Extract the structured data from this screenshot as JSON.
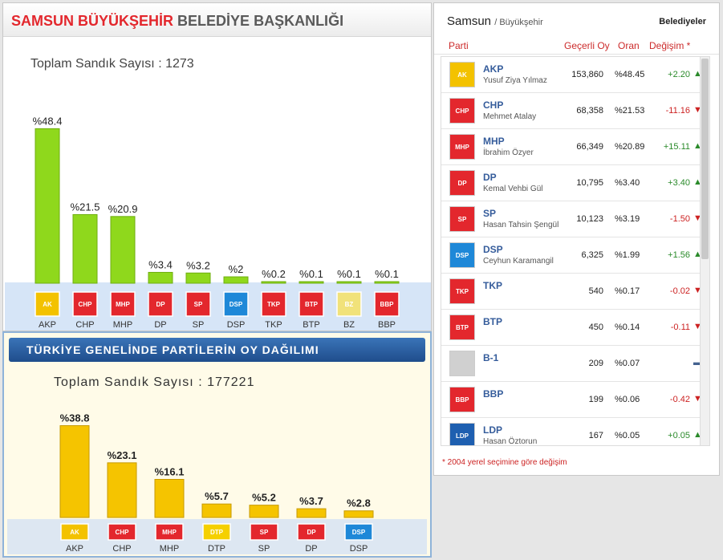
{
  "top_panel": {
    "title_red": "SAMSUN BÜYÜKŞEHİR",
    "title_gray": "BELEDİYE BAŞKANLIĞI",
    "total_label": "Toplam Sandık Sayısı : 1273"
  },
  "bottom_panel": {
    "banner": "TÜRKİYE GENELİNDE PARTİLERİN OY DAĞILIMI",
    "total_label": "Toplam Sandık Sayısı : 177221"
  },
  "chart_data": [
    {
      "type": "bar",
      "title": "SAMSUN BÜYÜKŞEHİR BELEDİYE BAŞKANLIĞI",
      "categories": [
        "AKP",
        "CHP",
        "MHP",
        "DP",
        "SP",
        "DSP",
        "TKP",
        "BTP",
        "BZ",
        "BBP"
      ],
      "values": [
        48.4,
        21.5,
        20.9,
        3.4,
        3.2,
        2,
        0.2,
        0.1,
        0.1,
        0.1
      ],
      "labels": [
        "%48.4",
        "%21.5",
        "%20.9",
        "%3.4",
        "%3.2",
        "%2",
        "%0.2",
        "%0.1",
        "%0.1",
        "%0.1"
      ],
      "ylim": [
        0,
        50
      ],
      "color": "#8fd81c"
    },
    {
      "type": "bar",
      "title": "TÜRKİYE GENELİNDE PARTİLERİN OY DAĞILIMI",
      "categories": [
        "AKP",
        "CHP",
        "MHP",
        "DTP",
        "SP",
        "DP",
        "DSP"
      ],
      "values": [
        38.8,
        23.1,
        16.1,
        5.7,
        5.2,
        3.7,
        2.8
      ],
      "labels": [
        "%38.8",
        "%23.1",
        "%16.1",
        "%5.7",
        "%5.2",
        "%3.7",
        "%2.8"
      ],
      "ylim": [
        0,
        40
      ],
      "color": "#f5c400"
    }
  ],
  "top_logos": [
    {
      "party": "AKP",
      "color": "#f3c200",
      "text": "AK"
    },
    {
      "party": "CHP",
      "color": "#e3272d",
      "text": "CHP"
    },
    {
      "party": "MHP",
      "color": "#e3272d",
      "text": "MHP"
    },
    {
      "party": "DP",
      "color": "#e3272d",
      "text": "DP"
    },
    {
      "party": "SP",
      "color": "#e3272d",
      "text": "SP"
    },
    {
      "party": "DSP",
      "color": "#1e88d8",
      "text": "DSP"
    },
    {
      "party": "TKP",
      "color": "#e3272d",
      "text": "TKP"
    },
    {
      "party": "BTP",
      "color": "#e3272d",
      "text": "BTP"
    },
    {
      "party": "BZ",
      "color": "#f1e27a",
      "text": "BZ"
    },
    {
      "party": "BBP",
      "color": "#e3272d",
      "text": "BBP"
    }
  ],
  "bottom_logos": [
    {
      "party": "AKP",
      "color": "#f3c200",
      "text": "AK"
    },
    {
      "party": "CHP",
      "color": "#e3272d",
      "text": "CHP"
    },
    {
      "party": "MHP",
      "color": "#e3272d",
      "text": "MHP"
    },
    {
      "party": "DTP",
      "color": "#f5d000",
      "text": "DTP"
    },
    {
      "party": "SP",
      "color": "#e3272d",
      "text": "SP"
    },
    {
      "party": "DP",
      "color": "#e3272d",
      "text": "DP"
    },
    {
      "party": "DSP",
      "color": "#1e88d8",
      "text": "DSP"
    }
  ],
  "right_panel": {
    "city": "Samsun",
    "subtitle": "/ Büyükşehir",
    "right_label": "Belediyeler",
    "col_party": "Parti",
    "col_votes": "Geçerli Oy",
    "col_ratio": "Oran",
    "col_change": "Değişim *",
    "footnote": "* 2004 yerel seçimine göre değişim",
    "rows": [
      {
        "party": "AKP",
        "candidate": "Yusuf Ziya Yılmaz",
        "votes": "153,860",
        "ratio": "%48.45",
        "change": "+2.20",
        "arrow": "▲",
        "dir": "pos",
        "logo_color": "#f3c200",
        "logo_text": "AK"
      },
      {
        "party": "CHP",
        "candidate": "Mehmet Atalay",
        "votes": "68,358",
        "ratio": "%21.53",
        "change": "-11.16",
        "arrow": "▼",
        "dir": "neg",
        "logo_color": "#e3272d",
        "logo_text": "CHP"
      },
      {
        "party": "MHP",
        "candidate": "İbrahim Özyer",
        "votes": "66,349",
        "ratio": "%20.89",
        "change": "+15.11",
        "arrow": "▲",
        "dir": "pos",
        "logo_color": "#e3272d",
        "logo_text": "MHP"
      },
      {
        "party": "DP",
        "candidate": "Kemal Vehbi Gül",
        "votes": "10,795",
        "ratio": "%3.40",
        "change": "+3.40",
        "arrow": "▲",
        "dir": "pos",
        "logo_color": "#e3272d",
        "logo_text": "DP"
      },
      {
        "party": "SP",
        "candidate": "Hasan Tahsin Şengül",
        "votes": "10,123",
        "ratio": "%3.19",
        "change": "-1.50",
        "arrow": "▼",
        "dir": "neg",
        "logo_color": "#e3272d",
        "logo_text": "SP"
      },
      {
        "party": "DSP",
        "candidate": "Ceyhun Karamangil",
        "votes": "6,325",
        "ratio": "%1.99",
        "change": "+1.56",
        "arrow": "▲",
        "dir": "pos",
        "logo_color": "#1e88d8",
        "logo_text": "DSP"
      },
      {
        "party": "TKP",
        "candidate": "",
        "votes": "540",
        "ratio": "%0.17",
        "change": "-0.02",
        "arrow": "▼",
        "dir": "neg",
        "logo_color": "#e3272d",
        "logo_text": "TKP"
      },
      {
        "party": "BTP",
        "candidate": "",
        "votes": "450",
        "ratio": "%0.14",
        "change": "-0.11",
        "arrow": "▼",
        "dir": "neg",
        "logo_color": "#e3272d",
        "logo_text": "BTP"
      },
      {
        "party": "B-1",
        "candidate": "",
        "votes": "209",
        "ratio": "%0.07",
        "change": "",
        "arrow": "▬",
        "dir": "neu",
        "logo_color": "#d0d0d0",
        "logo_text": ""
      },
      {
        "party": "BBP",
        "candidate": "",
        "votes": "199",
        "ratio": "%0.06",
        "change": "-0.42",
        "arrow": "▼",
        "dir": "neg",
        "logo_color": "#e3272d",
        "logo_text": "BBP"
      },
      {
        "party": "LDP",
        "candidate": "Hasan Öztorun",
        "votes": "167",
        "ratio": "%0.05",
        "change": "+0.05",
        "arrow": "▲",
        "dir": "pos",
        "logo_color": "#1e5fb0",
        "logo_text": "LDP"
      }
    ]
  }
}
